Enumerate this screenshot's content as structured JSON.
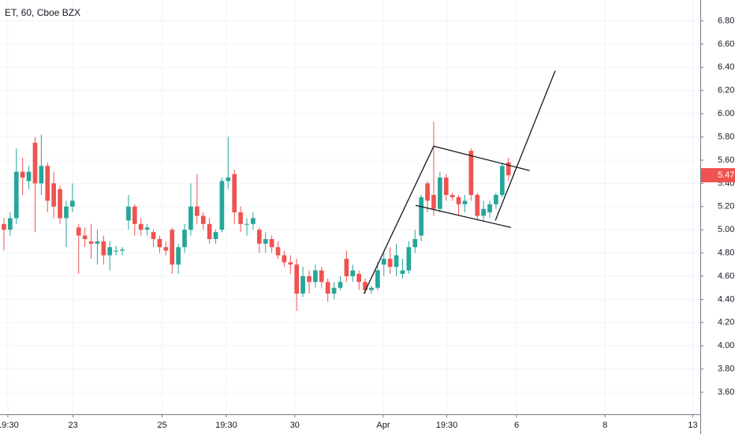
{
  "chart_data": {
    "type": "candlestick",
    "title": "ET, 60, Cboe BZX",
    "categories": [
      null,
      null,
      null,
      null,
      null,
      null,
      null,
      null,
      null,
      null,
      null,
      null,
      null,
      null,
      null,
      null,
      null,
      null,
      null,
      null,
      null,
      null,
      null,
      null,
      null,
      null,
      null,
      null,
      null,
      null,
      null,
      null,
      null,
      null,
      null,
      null,
      null,
      null,
      null,
      null,
      null,
      null,
      null,
      null,
      null,
      null,
      null,
      null,
      null,
      null,
      null,
      null,
      null,
      null,
      null,
      null,
      null,
      null,
      null,
      null,
      null,
      null,
      null,
      null,
      null,
      null,
      null,
      null,
      null,
      null,
      null,
      null,
      null,
      null,
      null,
      null,
      null,
      null,
      null,
      null,
      null,
      null
    ],
    "open": [
      5.05,
      5.0,
      5.1,
      5.5,
      5.42,
      5.75,
      5.4,
      5.55,
      5.4,
      5.35,
      5.1,
      5.2,
      5.02,
      4.95,
      4.9,
      4.88,
      4.9,
      4.78,
      4.82,
      4.82,
      5.08,
      5.2,
      5.05,
      5.0,
      4.98,
      4.92,
      4.85,
      5.0,
      4.7,
      4.85,
      5.0,
      5.2,
      5.12,
      5.05,
      4.92,
      5.0,
      5.42,
      5.48,
      5.15,
      5.05,
      5.05,
      5.0,
      4.88,
      4.92,
      4.85,
      4.78,
      4.72,
      4.7,
      4.45,
      4.6,
      4.55,
      4.65,
      4.55,
      4.45,
      4.5,
      4.75,
      4.6,
      4.62,
      4.55,
      4.48,
      4.5,
      4.7,
      4.75,
      4.68,
      4.62,
      4.65,
      4.85,
      4.95,
      5.4,
      5.3,
      5.18,
      5.45,
      5.3,
      5.28,
      5.22,
      5.68,
      5.3,
      5.12,
      5.15,
      5.22,
      5.3,
      5.58
    ],
    "high": [
      5.1,
      5.15,
      5.7,
      5.62,
      5.55,
      5.8,
      5.82,
      5.58,
      5.5,
      5.38,
      5.25,
      5.4,
      5.05,
      5.02,
      5.05,
      5.0,
      4.95,
      4.9,
      4.86,
      4.85,
      5.3,
      5.22,
      5.1,
      5.05,
      5.0,
      4.95,
      4.9,
      5.02,
      4.88,
      5.05,
      5.4,
      5.48,
      5.15,
      5.1,
      5.0,
      5.45,
      5.8,
      5.52,
      5.2,
      5.1,
      5.15,
      5.02,
      4.98,
      4.95,
      4.9,
      4.82,
      4.78,
      4.75,
      4.68,
      4.65,
      4.7,
      4.68,
      4.58,
      4.55,
      4.6,
      4.82,
      4.7,
      4.65,
      4.58,
      4.52,
      4.72,
      4.8,
      4.85,
      4.88,
      4.75,
      4.9,
      5.0,
      5.3,
      5.42,
      5.93,
      5.5,
      5.48,
      5.32,
      5.3,
      5.3,
      5.7,
      5.32,
      5.25,
      5.25,
      5.32,
      5.58,
      5.62
    ],
    "low": [
      4.82,
      4.95,
      5.05,
      5.3,
      5.35,
      4.98,
      5.3,
      5.15,
      5.1,
      5.05,
      4.85,
      5.15,
      4.62,
      4.85,
      4.75,
      4.7,
      4.7,
      4.65,
      4.78,
      4.78,
      5.0,
      4.95,
      4.95,
      4.95,
      4.85,
      4.8,
      4.78,
      4.62,
      4.62,
      4.8,
      4.95,
      5.05,
      5.0,
      4.88,
      4.88,
      4.98,
      5.35,
      5.05,
      4.98,
      4.95,
      5.0,
      4.8,
      4.8,
      4.8,
      4.75,
      4.68,
      4.62,
      4.3,
      4.42,
      4.45,
      4.5,
      4.5,
      4.38,
      4.4,
      4.48,
      4.55,
      4.55,
      4.48,
      4.45,
      4.45,
      4.48,
      4.6,
      4.62,
      4.6,
      4.58,
      4.62,
      4.8,
      4.9,
      5.15,
      5.12,
      5.15,
      5.25,
      5.25,
      5.12,
      5.15,
      5.25,
      5.08,
      5.08,
      5.1,
      5.18,
      5.28,
      5.42
    ],
    "close": [
      5.0,
      5.1,
      5.5,
      5.45,
      5.5,
      5.4,
      5.55,
      5.25,
      5.2,
      5.1,
      5.2,
      5.25,
      4.95,
      4.92,
      4.88,
      4.9,
      4.78,
      4.85,
      4.82,
      4.83,
      5.2,
      5.05,
      5.0,
      5.02,
      4.92,
      4.85,
      4.82,
      4.7,
      4.85,
      5.0,
      5.2,
      5.12,
      5.05,
      4.92,
      4.98,
      5.42,
      5.45,
      5.15,
      5.05,
      5.05,
      5.1,
      4.88,
      4.92,
      4.85,
      4.78,
      4.72,
      4.7,
      4.45,
      4.6,
      4.55,
      4.65,
      4.55,
      4.45,
      4.5,
      4.55,
      4.6,
      4.65,
      4.55,
      4.48,
      4.5,
      4.65,
      4.75,
      4.68,
      4.78,
      4.65,
      4.85,
      4.92,
      5.28,
      5.25,
      5.18,
      5.45,
      5.3,
      5.28,
      5.22,
      5.25,
      5.3,
      5.12,
      5.18,
      5.22,
      5.3,
      5.55,
      5.47
    ],
    "up_color": "#26a69a",
    "down_color": "#ef5350",
    "xlim": [
      -0.63,
      111.8
    ],
    "xticks": [
      {
        "value": 0.63,
        "label": "19:30"
      },
      {
        "value": 11.1,
        "label": "23"
      },
      {
        "value": 25.4,
        "label": "25"
      },
      {
        "value": 35.7,
        "label": "19:30"
      },
      {
        "value": 46.7,
        "label": "30"
      },
      {
        "value": 60.9,
        "label": "Apr"
      },
      {
        "value": 71.1,
        "label": "19:30"
      },
      {
        "value": 82.3,
        "label": "6"
      },
      {
        "value": 96.5,
        "label": "8"
      },
      {
        "value": 110.6,
        "label": "13"
      }
    ],
    "ylim": [
      3.41,
      6.98
    ],
    "yticks": [
      {
        "value": 3.6,
        "label": "3.60"
      },
      {
        "value": 3.8,
        "label": "3.80"
      },
      {
        "value": 4.0,
        "label": "4.00"
      },
      {
        "value": 4.2,
        "label": "4.20"
      },
      {
        "value": 4.4,
        "label": "4.40"
      },
      {
        "value": 4.6,
        "label": "4.60"
      },
      {
        "value": 4.8,
        "label": "4.80"
      },
      {
        "value": 5.0,
        "label": "5.00"
      },
      {
        "value": 5.2,
        "label": "5.20"
      },
      {
        "value": 5.4,
        "label": "5.40"
      },
      {
        "value": 5.6,
        "label": "5.60"
      },
      {
        "value": 5.8,
        "label": "5.80"
      },
      {
        "value": 6.0,
        "label": "6.00"
      },
      {
        "value": 6.2,
        "label": "6.20"
      },
      {
        "value": 6.4,
        "label": "6.40"
      },
      {
        "value": 6.6,
        "label": "6.60"
      },
      {
        "value": 6.8,
        "label": "6.80"
      }
    ],
    "grid": true,
    "last_price": 5.47,
    "last_price_label": "5.47",
    "trend_lines": [
      {
        "x": [
          57.8,
          69.0
        ],
        "y": [
          4.45,
          5.72
        ]
      },
      {
        "x": [
          69.0,
          84.4
        ],
        "y": [
          5.72,
          5.51
        ]
      },
      {
        "x": [
          66.1,
          81.4
        ],
        "y": [
          5.21,
          5.02
        ]
      },
      {
        "x": [
          78.9,
          88.5
        ],
        "y": [
          5.08,
          6.37
        ]
      }
    ]
  }
}
